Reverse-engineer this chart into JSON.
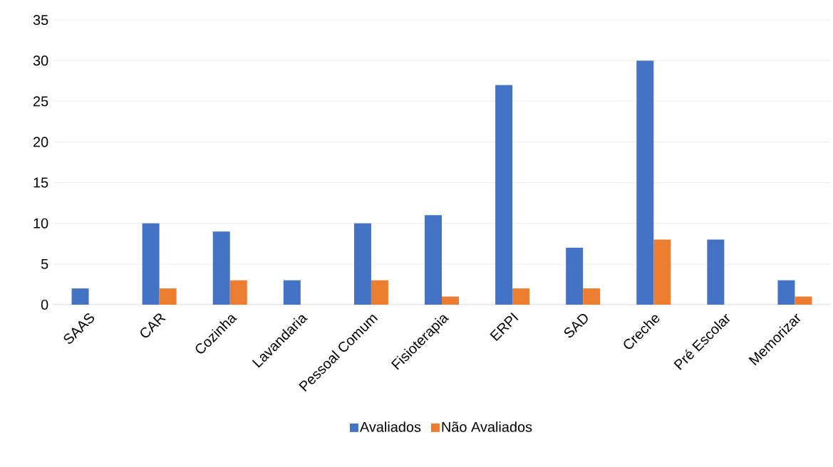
{
  "chart_data": {
    "type": "bar",
    "categories": [
      "SAAS",
      "CAR",
      "Cozinha",
      "Lavandaria",
      "Pessoal Comum",
      "Fisioterapia",
      "ERPI",
      "SAD",
      "Creche",
      "Pré Escolar",
      "Memorizar"
    ],
    "series": [
      {
        "name": "Avaliados",
        "color": "#4472c4",
        "values": [
          2,
          10,
          9,
          3,
          10,
          11,
          27,
          7,
          30,
          8,
          3
        ]
      },
      {
        "name": "Não Avaliados",
        "color": "#ed7d31",
        "values": [
          0,
          2,
          3,
          0,
          3,
          1,
          2,
          2,
          8,
          0,
          1
        ]
      }
    ],
    "ylim": [
      0,
      35
    ],
    "yticks": [
      0,
      5,
      10,
      15,
      20,
      25,
      30,
      35
    ],
    "grid": "y",
    "legend": "bottom"
  }
}
